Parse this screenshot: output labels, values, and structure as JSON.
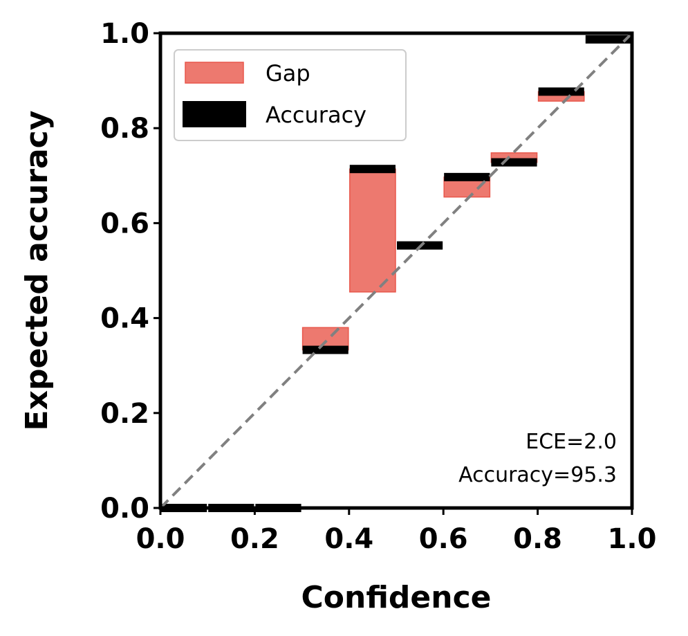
{
  "chart_data": {
    "type": "bar",
    "xlabel": "Confidence",
    "ylabel": "Expected accuracy",
    "xlim": [
      0.0,
      1.0
    ],
    "ylim": [
      0.0,
      1.0
    ],
    "xticks": [
      "0.0",
      "0.2",
      "0.4",
      "0.6",
      "0.8",
      "1.0"
    ],
    "yticks": [
      "0.0",
      "0.2",
      "0.4",
      "0.6",
      "0.8",
      "1.0"
    ],
    "grid": false,
    "legend_position": "top-left",
    "legend": [
      {
        "label": "Gap",
        "color": "#e8574b"
      },
      {
        "label": "Accuracy",
        "color": "#000000"
      }
    ],
    "bins": [
      {
        "x_start": 0.0,
        "x_end": 0.1,
        "accuracy": 0.0,
        "expected": 0.0
      },
      {
        "x_start": 0.1,
        "x_end": 0.2,
        "accuracy": 0.0,
        "expected": 0.0
      },
      {
        "x_start": 0.2,
        "x_end": 0.3,
        "accuracy": 0.0,
        "expected": 0.0
      },
      {
        "x_start": 0.3,
        "x_end": 0.4,
        "accuracy": 0.333,
        "expected": 0.38
      },
      {
        "x_start": 0.4,
        "x_end": 0.5,
        "accuracy": 0.714,
        "expected": 0.455
      },
      {
        "x_start": 0.5,
        "x_end": 0.6,
        "accuracy": 0.553,
        "expected": 0.553
      },
      {
        "x_start": 0.6,
        "x_end": 0.7,
        "accuracy": 0.697,
        "expected": 0.655
      },
      {
        "x_start": 0.7,
        "x_end": 0.8,
        "accuracy": 0.728,
        "expected": 0.748
      },
      {
        "x_start": 0.8,
        "x_end": 0.9,
        "accuracy": 0.877,
        "expected": 0.857
      },
      {
        "x_start": 0.9,
        "x_end": 1.0,
        "accuracy": 0.987,
        "expected": 0.987
      }
    ],
    "diagonal_color": "#808080",
    "annotations": [
      "ECE=2.0",
      "Accuracy=95.3"
    ]
  }
}
